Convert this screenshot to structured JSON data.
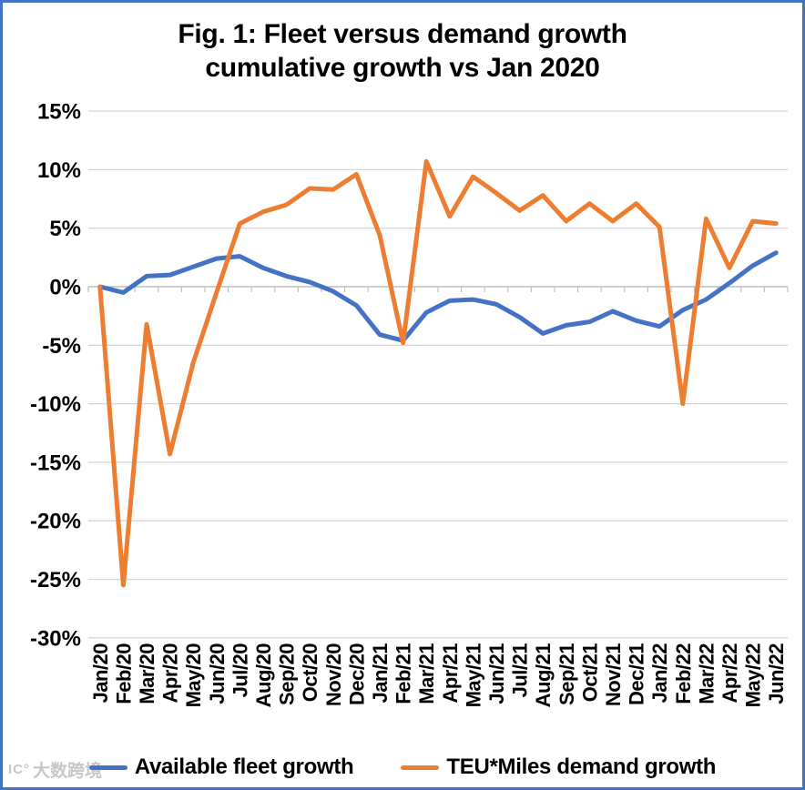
{
  "title": {
    "line1": "Fig. 1: Fleet versus demand growth",
    "line2": "cumulative growth vs Jan 2020"
  },
  "watermark": {
    "icon": "IC°",
    "text": "大数跨境"
  },
  "colors": {
    "fleet_series": "#4472C4",
    "demand_series": "#ED7D31",
    "gridline": "#D6D6D6",
    "axis": "#BFBFBF",
    "frame_border": "#4472C4",
    "text": "#000000"
  },
  "chart_data": {
    "type": "line",
    "title": "Fig. 1: Fleet versus demand growth",
    "subtitle": "cumulative growth vs Jan 2020",
    "categories": [
      "Jan/20",
      "Feb/20",
      "Mar/20",
      "Apr/20",
      "May/20",
      "Jun/20",
      "Jul/20",
      "Aug/20",
      "Sep/20",
      "Oct/20",
      "Nov/20",
      "Dec/20",
      "Jan/21",
      "Feb/21",
      "Mar/21",
      "Apr/21",
      "May/21",
      "Jun/21",
      "Jul/21",
      "Aug/21",
      "Sep/21",
      "Oct/21",
      "Nov/21",
      "Dec/21",
      "Jan/22",
      "Feb/22",
      "Mar/22",
      "Apr/22",
      "May/22",
      "Jun/22"
    ],
    "series": [
      {
        "name": "Available fleet growth",
        "color": "#4472C4",
        "values": [
          0.0,
          -0.5,
          0.9,
          1.0,
          1.7,
          2.4,
          2.6,
          1.6,
          0.9,
          0.4,
          -0.4,
          -1.6,
          -4.1,
          -4.6,
          -2.2,
          -1.2,
          -1.1,
          -1.5,
          -2.6,
          -4.0,
          -3.3,
          -3.0,
          -2.1,
          -2.9,
          -3.4,
          -2.0,
          -1.1,
          0.3,
          1.8,
          2.9
        ]
      },
      {
        "name": "TEU*Miles demand growth",
        "color": "#ED7D31",
        "values": [
          0.0,
          -25.5,
          -3.2,
          -14.3,
          -6.5,
          -0.5,
          5.4,
          6.4,
          7.0,
          8.4,
          8.3,
          9.6,
          4.4,
          -4.8,
          10.7,
          6.0,
          9.4,
          8.0,
          6.5,
          7.8,
          5.6,
          7.1,
          5.6,
          7.1,
          5.1,
          -10.0,
          5.8,
          1.6,
          5.6,
          5.4
        ]
      }
    ],
    "y_axis": {
      "unit": "%",
      "min": -30,
      "max": 15,
      "step": 5,
      "tick_labels": [
        "15%",
        "10%",
        "5%",
        "0%",
        "-5%",
        "-10%",
        "-15%",
        "-20%",
        "-25%",
        "-30%"
      ]
    },
    "x_axis": {
      "label_rotation_degrees": 90
    },
    "grid": true,
    "legend_position": "bottom"
  }
}
